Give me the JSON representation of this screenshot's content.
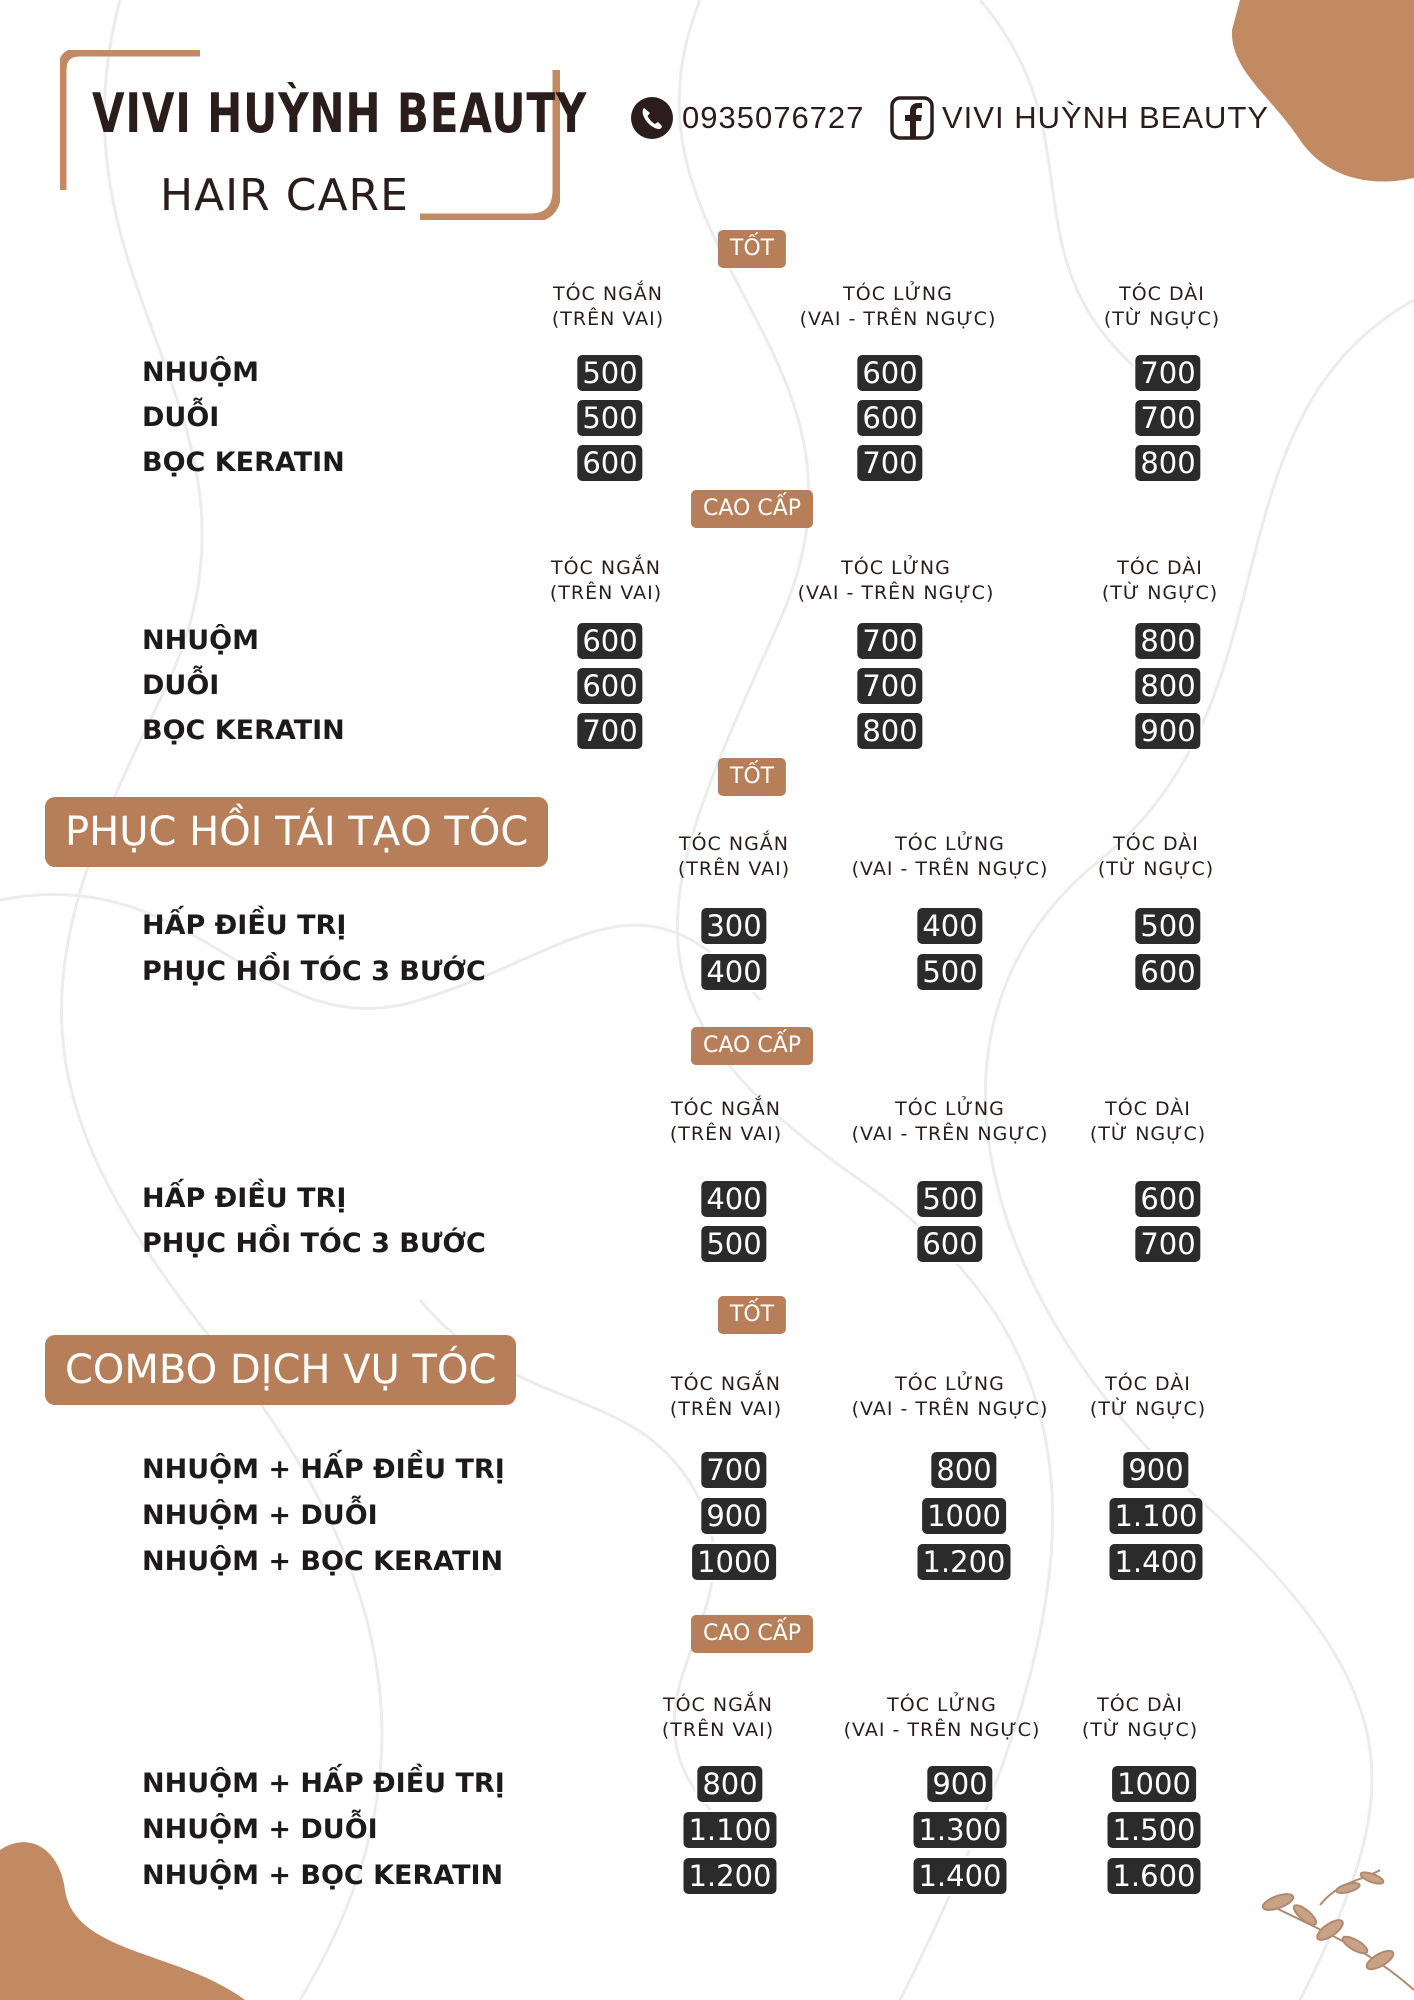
{
  "brand": {
    "name": "VIVI HUỲNH BEAUTY",
    "subtitle": "HAIR CARE",
    "phone": "0935076727",
    "facebook": "VIVI HUỲNH BEAUTY",
    "icons": [
      "phone-icon",
      "facebook-icon"
    ]
  },
  "colors": {
    "accent": "#b67f5a",
    "price_bg": "#2b2b2b",
    "text": "#231f20"
  },
  "tiers": {
    "good": "TỐT",
    "premium": "CAO CẤP"
  },
  "columns": {
    "short": [
      "TÓC NGẮN",
      "(TRÊN VAI)"
    ],
    "medium": [
      "TÓC LỬNG",
      "(VAI - TRÊN NGỰC)"
    ],
    "long": [
      "TÓC DÀI",
      "(TỪ NGỰC)"
    ]
  },
  "sections": {
    "restore_title": "PHỤC HỒI TÁI TẠO TÓC",
    "combo_title": "COMBO DỊCH VỤ TÓC"
  },
  "tables": [
    {
      "tier": "TỐT",
      "rows": [
        {
          "service": "NHUỘM",
          "prices": [
            "500",
            "600",
            "700"
          ]
        },
        {
          "service": "DUỖI",
          "prices": [
            "500",
            "600",
            "700"
          ]
        },
        {
          "service": "BỌC KERATIN",
          "prices": [
            "600",
            "700",
            "800"
          ]
        }
      ]
    },
    {
      "tier": "CAO CẤP",
      "rows": [
        {
          "service": "NHUỘM",
          "prices": [
            "600",
            "700",
            "800"
          ]
        },
        {
          "service": "DUỖI",
          "prices": [
            "600",
            "700",
            "800"
          ]
        },
        {
          "service": "BỌC KERATIN",
          "prices": [
            "700",
            "800",
            "900"
          ]
        }
      ]
    },
    {
      "tier": "TỐT",
      "rows": [
        {
          "service": "HẤP ĐIỀU TRỊ",
          "prices": [
            "300",
            "400",
            "500"
          ]
        },
        {
          "service": "PHỤC HỒI TÓC 3 BƯỚC",
          "prices": [
            "400",
            "500",
            "600"
          ]
        }
      ]
    },
    {
      "tier": "CAO CẤP",
      "rows": [
        {
          "service": "HẤP ĐIỀU TRỊ",
          "prices": [
            "400",
            "500",
            "600"
          ]
        },
        {
          "service": "PHỤC HỒI TÓC 3 BƯỚC",
          "prices": [
            "500",
            "600",
            "700"
          ]
        }
      ]
    },
    {
      "tier": "TỐT",
      "rows": [
        {
          "service": "NHUỘM + HẤP ĐIỀU TRỊ",
          "prices": [
            "700",
            "800",
            "900"
          ]
        },
        {
          "service": "NHUỘM + DUỖI",
          "prices": [
            "900",
            "1000",
            "1.100"
          ]
        },
        {
          "service": "NHUỘM + BỌC KERATIN",
          "prices": [
            "1000",
            "1.200",
            "1.400"
          ]
        }
      ]
    },
    {
      "tier": "CAO CẤP",
      "rows": [
        {
          "service": "NHUỘM + HẤP ĐIỀU TRỊ",
          "prices": [
            "800",
            "900",
            "1000"
          ]
        },
        {
          "service": "NHUỘM + DUỖI",
          "prices": [
            "1.100",
            "1.300",
            "1.500"
          ]
        },
        {
          "service": "NHUỘM + BỌC KERATIN",
          "prices": [
            "1.200",
            "1.400",
            "1.600"
          ]
        }
      ]
    }
  ]
}
